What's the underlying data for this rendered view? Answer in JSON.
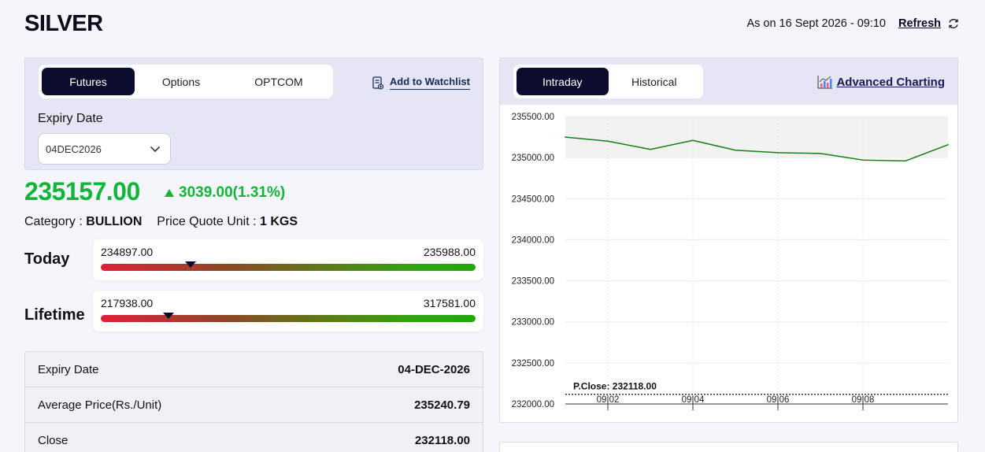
{
  "header": {
    "title": "SILVER",
    "as_on": "As on 16 Sept 2026 - 09:10",
    "refresh_label": "Refresh"
  },
  "left": {
    "tabs": [
      {
        "label": "Futures",
        "active": true
      },
      {
        "label": "Options",
        "active": false
      },
      {
        "label": "OPTCOM",
        "active": false
      }
    ],
    "watchlist_label": "Add to Watchlist",
    "expiry_label": "Expiry Date",
    "expiry_value": "04DEC2026",
    "price": "235157.00",
    "change": "3039.00(1.31%)",
    "change_direction": "up",
    "category_label": "Category :",
    "category_value": "BULLION",
    "quote_unit_label": "Price Quote Unit :",
    "quote_unit_value": "1 KGS",
    "today": {
      "label": "Today",
      "low": "234897.00",
      "high": "235988.00",
      "position": 0.24
    },
    "lifetime": {
      "label": "Lifetime",
      "low": "217938.00",
      "high": "317581.00",
      "position": 0.18
    },
    "details": [
      {
        "label": "Expiry Date",
        "value": "04-DEC-2026"
      },
      {
        "label": "Average Price(Rs./Unit)",
        "value": "235240.79"
      },
      {
        "label": "Close",
        "value": "232118.00"
      }
    ]
  },
  "right": {
    "tabs": [
      {
        "label": "Intraday",
        "active": true
      },
      {
        "label": "Historical",
        "active": false
      }
    ],
    "advanced_label": "Advanced Charting"
  },
  "colors": {
    "accent_dark": "#0b0b2e",
    "positive": "#12b53a",
    "line": "#1a7d1a",
    "panel_bg": "#e4e6f5"
  },
  "chart_data": {
    "type": "line",
    "ylim": [
      232000,
      235500
    ],
    "yticks": [
      "235500.00",
      "235000.00",
      "234500.00",
      "234000.00",
      "233500.00",
      "233000.00",
      "232500.00",
      "232000.00"
    ],
    "xticks": [
      "09:02",
      "09:04",
      "09:06",
      "09:08"
    ],
    "x": [
      "09:01",
      "09:02",
      "09:03",
      "09:04",
      "09:05",
      "09:06",
      "09:07",
      "09:08",
      "09:09",
      "09:10"
    ],
    "series": [
      {
        "values": [
          235250,
          235200,
          235100,
          235210,
          235090,
          235060,
          235050,
          234970,
          234960,
          235157
        ]
      }
    ],
    "pclose": 232118,
    "pclose_label": "P.Close: 232118.00"
  }
}
